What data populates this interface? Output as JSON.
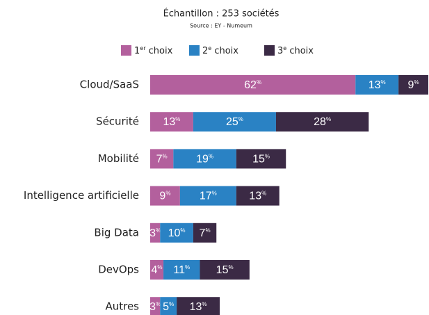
{
  "chart_data": {
    "type": "stacked-bar",
    "orientation": "horizontal",
    "title": "Échantillon : 253 sociétés",
    "subtitle": "Source : EY - Numeum",
    "categories": [
      "Cloud/SaaS",
      "Sécurité",
      "Mobilité",
      "Intelligence artificielle",
      "Big Data",
      "DevOps",
      "Autres"
    ],
    "series": [
      {
        "name": "1er choix",
        "color": "#b3609d",
        "values": [
          62,
          13,
          7,
          9,
          3,
          4,
          3
        ],
        "value_labels": [
          "62%",
          "13%",
          "7%",
          "9%",
          "3%",
          "4%",
          "3%"
        ]
      },
      {
        "name": "2e choix",
        "color": "#2a82c4",
        "values": [
          13,
          25,
          19,
          17,
          10,
          11,
          5
        ],
        "value_labels": [
          "13%",
          "25%",
          "19%",
          "17%",
          "10%",
          "11%",
          "5%"
        ]
      },
      {
        "name": "3e choix",
        "color": "#3b2a45",
        "values": [
          9,
          28,
          15,
          13,
          7,
          15,
          13
        ],
        "value_labels": [
          "9%",
          "28%",
          "15%",
          "13%",
          "7%",
          "15%",
          "13%"
        ]
      }
    ],
    "legend": "top"
  }
}
